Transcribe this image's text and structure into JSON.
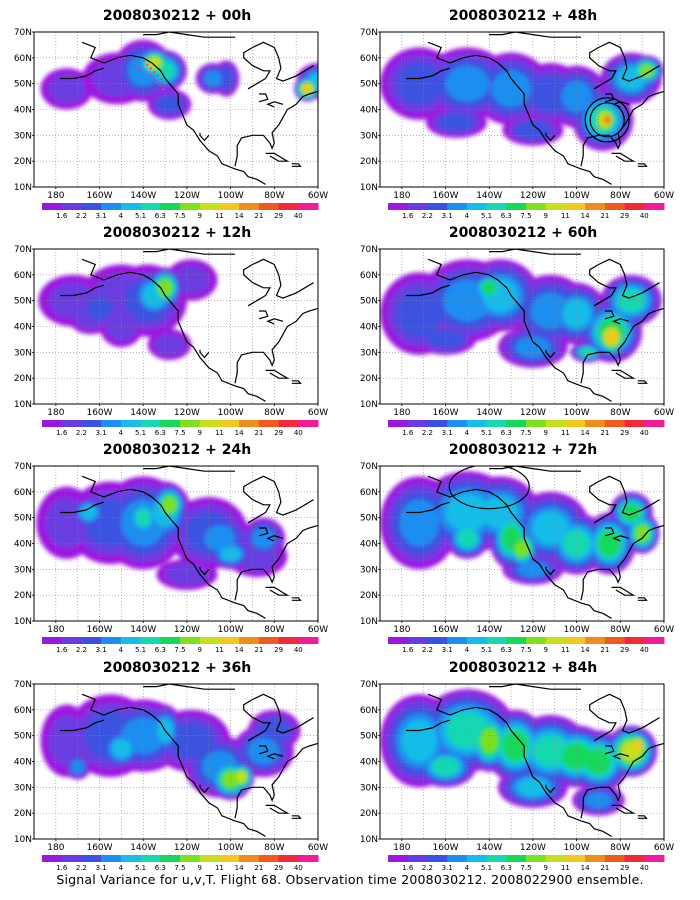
{
  "panels": [
    {
      "title": "2008030212 + 00h",
      "lead": 0
    },
    {
      "title": "2008030212 + 12h",
      "lead": 12
    },
    {
      "title": "2008030212 + 24h",
      "lead": 24
    },
    {
      "title": "2008030212 + 36h",
      "lead": 36
    },
    {
      "title": "2008030212 + 48h",
      "lead": 48
    },
    {
      "title": "2008030212 + 60h",
      "lead": 60
    },
    {
      "title": "2008030212 + 72h",
      "lead": 72
    },
    {
      "title": "2008030212 + 84h",
      "lead": 84
    }
  ],
  "y_ticks": [
    "10N",
    "20N",
    "30N",
    "40N",
    "50N",
    "60N",
    "70N"
  ],
  "x_ticks": [
    "180",
    "160W",
    "140W",
    "120W",
    "100W",
    "80W",
    "60W"
  ],
  "colorbar": {
    "labels": [
      "1.6",
      "2.2",
      "3.1",
      "4",
      "5.1",
      "6.3",
      "7.5",
      "9",
      "11",
      "14",
      "21",
      "29",
      "40"
    ],
    "colors": [
      "#9b18e0",
      "#6a3ce0",
      "#3a52e0",
      "#1e8ef0",
      "#18bce8",
      "#18d8b0",
      "#18d85a",
      "#7ee01e",
      "#c6e01e",
      "#f0c81e",
      "#f08c1e",
      "#f05a1e",
      "#f02a3a",
      "#f01e96"
    ]
  },
  "caption": "Signal Variance for u,v,T. Flight 68. Observation time 2008030212. 2008022900 ensemble.",
  "chart_data": {
    "type": "heatmap",
    "variable": "Signal Variance for u,v,T",
    "lon_range": [
      "180",
      "60W"
    ],
    "lat_range": [
      "10N",
      "70N"
    ],
    "levels": [
      1.6,
      2.2,
      3.1,
      4,
      5.1,
      6.3,
      7.5,
      9,
      11,
      14,
      21,
      29,
      40
    ],
    "lead_times_h": [
      0,
      12,
      24,
      36,
      48,
      60,
      72,
      84
    ]
  }
}
